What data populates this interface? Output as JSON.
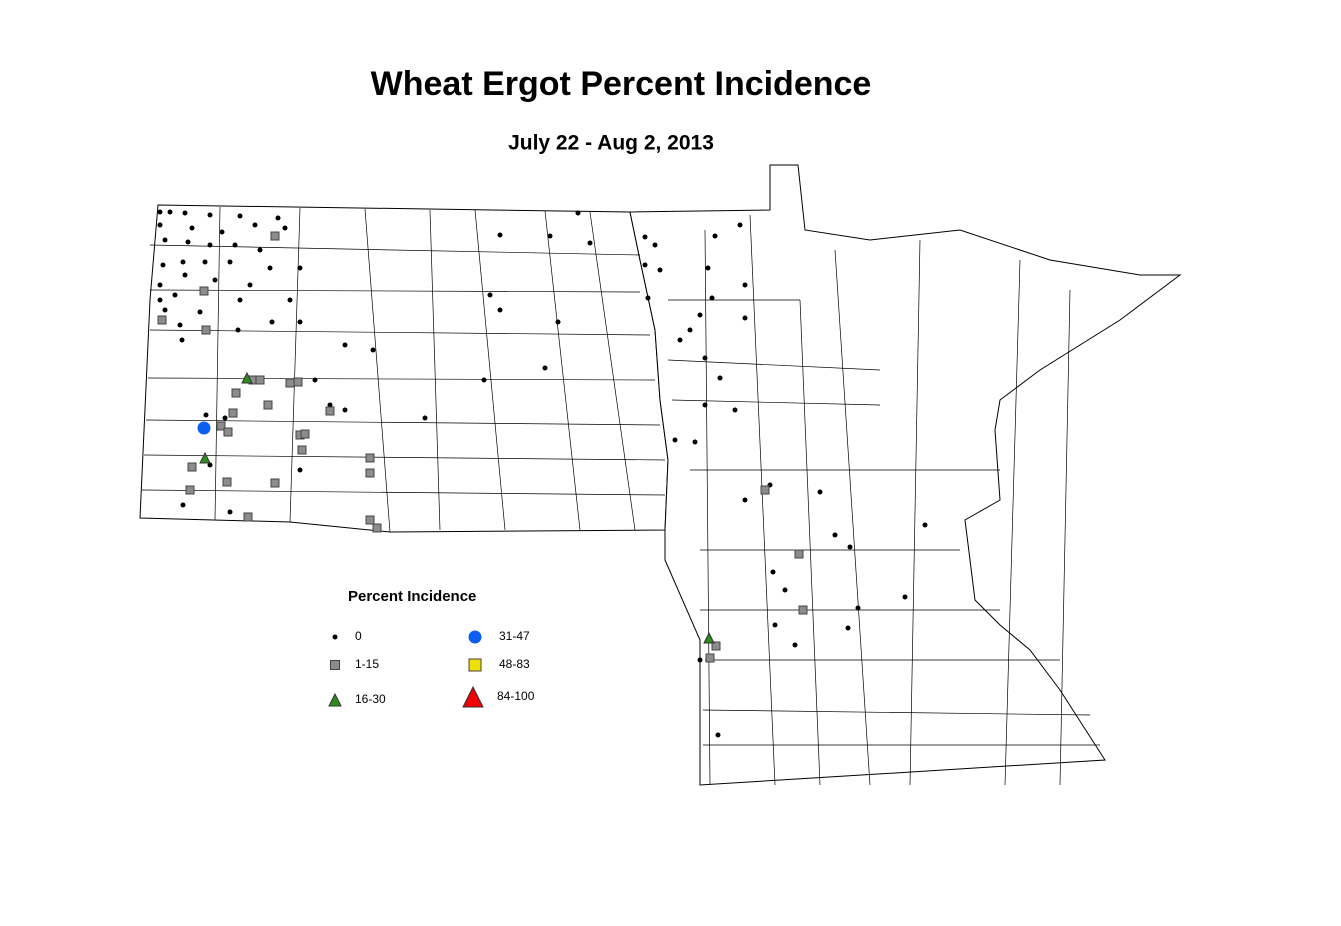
{
  "title": "Wheat Ergot Percent Incidence",
  "subtitle": "July 22 - Aug 2, 2013",
  "legend": {
    "title": "Percent Incidence",
    "items": [
      {
        "label": "0",
        "symbol": "dot",
        "color": "#000000"
      },
      {
        "label": "1-15",
        "symbol": "square",
        "color": "#8c8c8c"
      },
      {
        "label": "16-30",
        "symbol": "triangle",
        "color": "#2e8b1e"
      },
      {
        "label": "31-47",
        "symbol": "circle",
        "color": "#0a5ff0"
      },
      {
        "label": "48-83",
        "symbol": "square",
        "color": "#f0e000"
      },
      {
        "label": "84-100",
        "symbol": "triangle",
        "color": "#f00000"
      }
    ]
  }
}
